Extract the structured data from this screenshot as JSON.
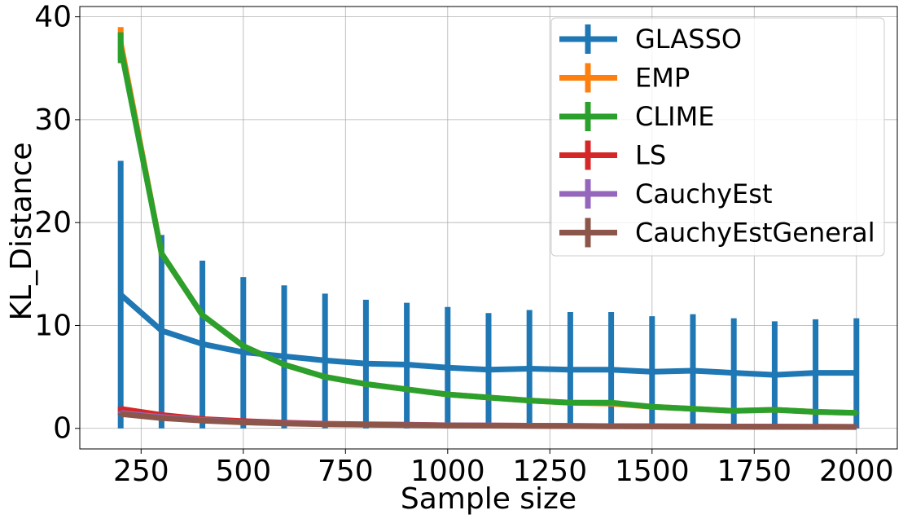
{
  "chart_data": {
    "type": "line",
    "title": "",
    "xlabel": "Sample size",
    "ylabel": "KL_Distance",
    "xlim": [
      100,
      2100
    ],
    "ylim": [
      -2,
      41
    ],
    "grid": true,
    "legend_position": "top-right",
    "x_ticks": [
      250,
      500,
      750,
      1000,
      1250,
      1500,
      1750,
      2000
    ],
    "y_ticks": [
      0,
      10,
      20,
      30,
      40
    ],
    "x": [
      200,
      300,
      400,
      500,
      600,
      700,
      800,
      900,
      1000,
      1100,
      1200,
      1300,
      1400,
      1500,
      1600,
      1700,
      1800,
      1900,
      2000
    ],
    "series": [
      {
        "name": "GLASSO",
        "color": "#1f77b4",
        "values": [
          13.0,
          9.5,
          8.2,
          7.4,
          7.0,
          6.6,
          6.3,
          6.2,
          5.9,
          5.7,
          5.8,
          5.7,
          5.7,
          5.5,
          5.6,
          5.4,
          5.2,
          5.4,
          5.4
        ],
        "err_low": [
          0.0,
          0.0,
          0.0,
          0.0,
          0.0,
          0.0,
          0.0,
          0.0,
          0.0,
          0.0,
          0.0,
          0.0,
          0.0,
          0.0,
          0.0,
          0.0,
          0.0,
          0.0,
          0.0
        ],
        "err_high": [
          26.0,
          18.8,
          16.3,
          14.7,
          13.9,
          13.1,
          12.5,
          12.2,
          11.8,
          11.2,
          11.5,
          11.3,
          11.3,
          10.9,
          11.1,
          10.7,
          10.4,
          10.6,
          10.7
        ]
      },
      {
        "name": "EMP",
        "color": "#ff7f0e",
        "values": [
          37.5,
          17.0,
          11.0,
          8.0,
          6.2,
          5.0,
          4.3,
          3.8,
          3.3,
          3.0,
          2.7,
          2.5,
          2.4,
          2.1,
          1.9,
          1.7,
          1.8,
          1.6,
          1.5
        ],
        "err_low": [
          35.8,
          16.8,
          10.9,
          7.9,
          6.1,
          4.9,
          4.2,
          3.7,
          3.2,
          2.9,
          2.6,
          2.4,
          2.3,
          2.0,
          1.8,
          1.6,
          1.7,
          1.5,
          1.4
        ],
        "err_high": [
          39.0,
          17.2,
          11.1,
          8.1,
          6.3,
          5.1,
          4.4,
          3.9,
          3.4,
          3.1,
          2.8,
          2.6,
          2.5,
          2.2,
          2.0,
          1.8,
          1.9,
          1.7,
          1.6
        ]
      },
      {
        "name": "CLIME",
        "color": "#2ca02c",
        "values": [
          37.0,
          17.0,
          11.0,
          8.0,
          6.2,
          5.0,
          4.3,
          3.8,
          3.3,
          3.0,
          2.7,
          2.5,
          2.5,
          2.1,
          1.9,
          1.7,
          1.8,
          1.6,
          1.5
        ],
        "err_low": [
          35.5,
          16.8,
          10.9,
          7.9,
          6.1,
          4.9,
          4.2,
          3.7,
          3.2,
          2.9,
          2.6,
          2.4,
          2.4,
          2.0,
          1.8,
          1.6,
          1.7,
          1.5,
          1.4
        ],
        "err_high": [
          38.5,
          17.2,
          11.1,
          8.1,
          6.3,
          5.1,
          4.4,
          3.9,
          3.4,
          3.1,
          2.8,
          2.6,
          2.6,
          2.2,
          2.0,
          1.8,
          1.9,
          1.7,
          1.6
        ]
      },
      {
        "name": "LS",
        "color": "#d62728",
        "values": [
          1.9,
          1.3,
          0.9,
          0.7,
          0.55,
          0.45,
          0.4,
          0.35,
          0.3,
          0.28,
          0.26,
          0.24,
          0.22,
          0.2,
          0.19,
          0.18,
          0.17,
          0.16,
          0.15
        ],
        "err_low": [
          1.7,
          1.2,
          0.85,
          0.65,
          0.5,
          0.42,
          0.37,
          0.32,
          0.28,
          0.26,
          0.24,
          0.22,
          0.2,
          0.18,
          0.17,
          0.16,
          0.15,
          0.14,
          0.13
        ],
        "err_high": [
          2.1,
          1.4,
          0.95,
          0.75,
          0.6,
          0.48,
          0.43,
          0.38,
          0.32,
          0.3,
          0.28,
          0.26,
          0.24,
          0.22,
          0.21,
          0.2,
          0.19,
          0.18,
          0.17
        ]
      },
      {
        "name": "CauchyEst",
        "color": "#9467bd",
        "values": [
          1.5,
          1.1,
          0.8,
          0.6,
          0.5,
          0.42,
          0.37,
          0.33,
          0.29,
          0.27,
          0.25,
          0.23,
          0.21,
          0.2,
          0.18,
          0.17,
          0.16,
          0.15,
          0.14
        ],
        "err_low": [
          1.4,
          1.0,
          0.75,
          0.56,
          0.46,
          0.39,
          0.34,
          0.3,
          0.27,
          0.25,
          0.23,
          0.21,
          0.19,
          0.18,
          0.16,
          0.15,
          0.14,
          0.13,
          0.12
        ],
        "err_high": [
          1.6,
          1.2,
          0.85,
          0.64,
          0.54,
          0.45,
          0.4,
          0.36,
          0.31,
          0.29,
          0.27,
          0.25,
          0.23,
          0.22,
          0.2,
          0.19,
          0.18,
          0.17,
          0.16
        ]
      },
      {
        "name": "CauchyEstGeneral",
        "color": "#8c564b",
        "values": [
          1.4,
          1.0,
          0.75,
          0.58,
          0.48,
          0.4,
          0.35,
          0.31,
          0.28,
          0.26,
          0.24,
          0.22,
          0.2,
          0.19,
          0.17,
          0.16,
          0.15,
          0.14,
          0.13
        ],
        "err_low": [
          1.3,
          0.95,
          0.7,
          0.54,
          0.44,
          0.37,
          0.32,
          0.29,
          0.26,
          0.24,
          0.22,
          0.2,
          0.18,
          0.17,
          0.15,
          0.14,
          0.13,
          0.12,
          0.11
        ],
        "err_high": [
          1.5,
          1.05,
          0.8,
          0.62,
          0.52,
          0.43,
          0.38,
          0.33,
          0.3,
          0.28,
          0.26,
          0.24,
          0.22,
          0.21,
          0.19,
          0.18,
          0.17,
          0.16,
          0.15
        ]
      }
    ]
  }
}
